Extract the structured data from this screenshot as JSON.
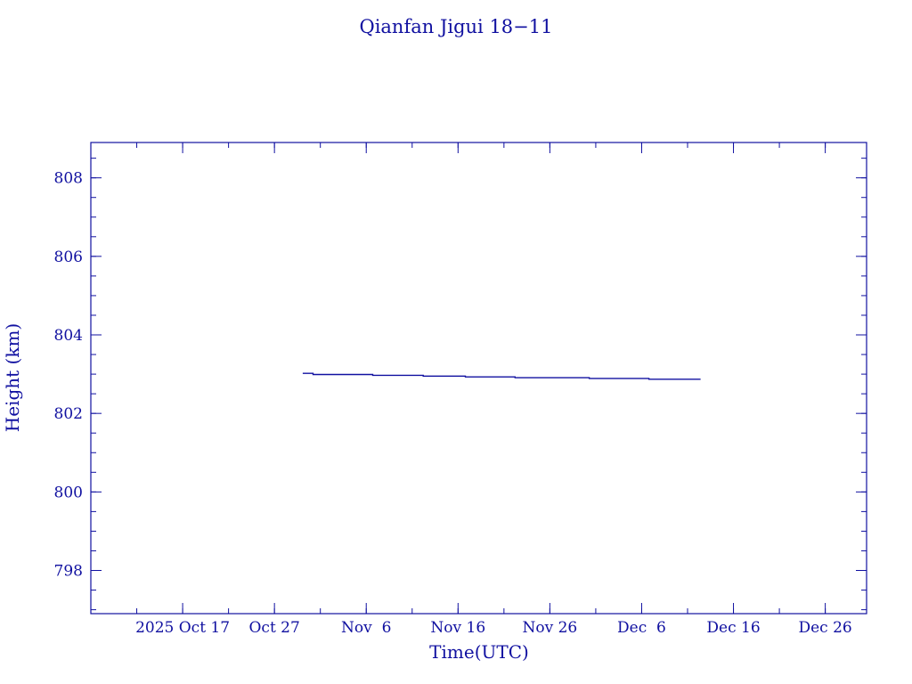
{
  "chart_data": {
    "type": "line",
    "title": "Qianfan Jigui 18−11",
    "xlabel": "Time(UTC)",
    "ylabel": "Height (km)",
    "xlim": [
      "2025-10-07T00:00",
      "2025-12-30T12:00"
    ],
    "ylim": [
      796.9,
      808.9
    ],
    "x_ticks": [
      {
        "date": "2025-10-17",
        "label": "2025 Oct 17"
      },
      {
        "date": "2025-10-27",
        "label": "Oct 27"
      },
      {
        "date": "2025-11-06",
        "label": "Nov  6"
      },
      {
        "date": "2025-11-16",
        "label": "Nov 16"
      },
      {
        "date": "2025-11-26",
        "label": "Nov 26"
      },
      {
        "date": "2025-12-06",
        "label": "Dec  6"
      },
      {
        "date": "2025-12-16",
        "label": "Dec 16"
      },
      {
        "date": "2025-12-26",
        "label": "Dec 26"
      }
    ],
    "x_minor_tick_days": 5,
    "y_ticks": [
      798,
      800,
      802,
      804,
      806,
      808
    ],
    "y_minor_tick_step": 0.5,
    "grid": false,
    "color": "#1010a0",
    "series": [
      {
        "step": true,
        "points": [
          [
            "2025-10-30T02:00",
            803.02
          ],
          [
            "2025-10-31T05:00",
            802.99
          ],
          [
            "2025-11-06T17:00",
            802.97
          ],
          [
            "2025-11-12T05:00",
            802.95
          ],
          [
            "2025-11-16T19:00",
            802.93
          ],
          [
            "2025-11-22T05:00",
            802.91
          ],
          [
            "2025-11-30T07:00",
            802.89
          ],
          [
            "2025-12-06T19:00",
            802.87
          ],
          [
            "2025-12-12T10:00",
            802.87
          ]
        ]
      }
    ]
  }
}
